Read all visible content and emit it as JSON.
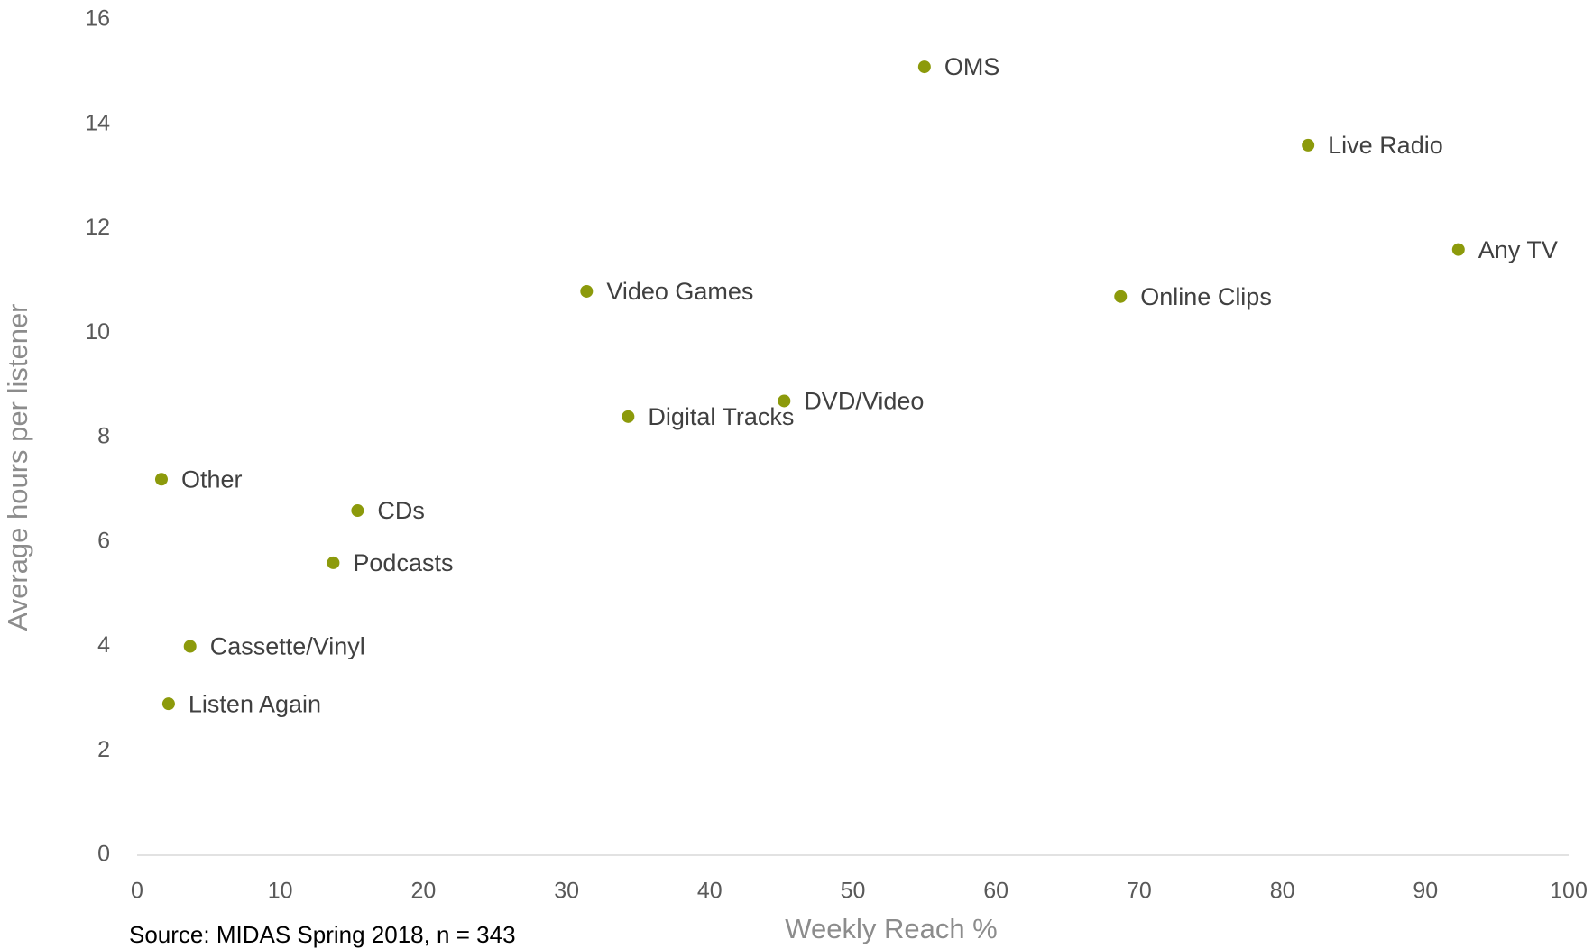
{
  "chart_data": {
    "type": "scatter",
    "labels": [
      "OMS",
      "Live Radio",
      "Any TV",
      "Online Clips",
      "Video Games",
      "DVD/Video",
      "Digital Tracks",
      "Other",
      "CDs",
      "Podcasts",
      "Cassette/Vinyl",
      "Listen Again"
    ],
    "x": [
      55.0,
      81.8,
      92.3,
      68.7,
      31.4,
      45.2,
      34.3,
      1.7,
      15.4,
      13.7,
      3.7,
      2.2
    ],
    "y": [
      15.1,
      13.6,
      11.6,
      10.7,
      10.8,
      8.7,
      8.4,
      7.2,
      6.6,
      5.6,
      4.0,
      2.9
    ],
    "color": "#8c9a0b",
    "xlim": [
      0,
      100
    ],
    "xticks": [
      0,
      10,
      20,
      30,
      40,
      50,
      60,
      70,
      80,
      90,
      100
    ],
    "ylim": [
      0,
      16
    ],
    "yticks": [
      0,
      2,
      4,
      6,
      8,
      10,
      12,
      14,
      16
    ],
    "xlabel": "Weekly Reach %",
    "ylabel": "Average hours per listener",
    "source": "Source: MIDAS Spring 2018, n = 343",
    "grid": false
  }
}
